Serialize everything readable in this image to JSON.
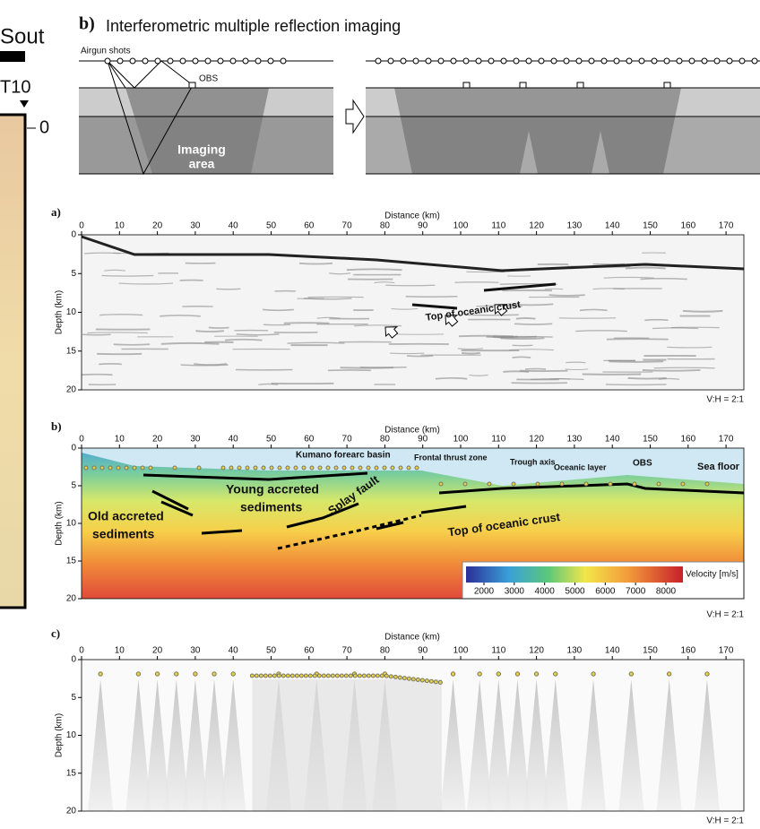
{
  "header": {
    "left_fragment": "Sout",
    "marker_label": "T10",
    "depth_zero": "0"
  },
  "schematic": {
    "label": "b)",
    "title": "Interferometric multiple reflection imaging",
    "airgun_label": "Airgun shots",
    "obs_label": "OBS",
    "imaging_label": [
      "Imaging",
      "area"
    ]
  },
  "panels": [
    {
      "label": "a)",
      "x_label": "Distance (km)",
      "y_label": "Depth (km)",
      "xticks": [
        0,
        10,
        20,
        30,
        40,
        50,
        60,
        70,
        80,
        90,
        100,
        110,
        120,
        130,
        140,
        150,
        160,
        170
      ],
      "yticks": [
        0,
        5,
        10,
        15,
        20
      ],
      "ratio": "V:H = 2:1",
      "annotations": [
        "Top of oceanic crust"
      ]
    },
    {
      "label": "b)",
      "x_label": "Distance (km)",
      "y_label": "Depth (km)",
      "xticks": [
        0,
        10,
        20,
        30,
        40,
        50,
        60,
        70,
        80,
        90,
        100,
        110,
        120,
        130,
        140,
        150,
        160,
        170
      ],
      "yticks": [
        0,
        5,
        10,
        15,
        20
      ],
      "ratio": "V:H = 2:1",
      "annotations": [
        "Kumano forearc basin",
        "Frontal thrust zone",
        "Trough axis",
        "Oceanic layer",
        "OBS",
        "Sea floor",
        "Young accreted",
        "sediments",
        "Old accreted",
        "sediments",
        "Splay fault",
        "Top of oceanic crust"
      ],
      "colorbar": {
        "ticks": [
          2000,
          3000,
          4000,
          5000,
          6000,
          7000,
          8000
        ],
        "label": "Velocity [m/s]"
      }
    },
    {
      "label": "c)",
      "x_label": "Distance (km)",
      "y_label": "Depth (km)",
      "xticks": [
        0,
        10,
        20,
        30,
        40,
        50,
        60,
        70,
        80,
        90,
        100,
        110,
        120,
        130,
        140,
        150,
        160,
        170
      ],
      "yticks": [
        0,
        5,
        10,
        15,
        20
      ],
      "ratio": "V:H = 2:1",
      "annotations": []
    }
  ]
}
